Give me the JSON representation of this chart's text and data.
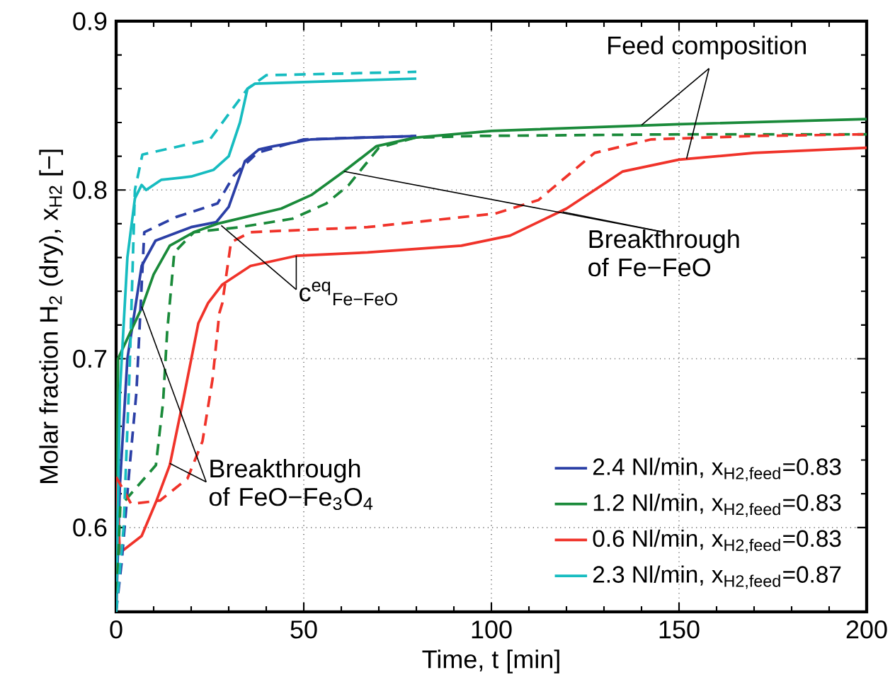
{
  "chart_data": {
    "type": "line",
    "xlabel": "Time, t [min]",
    "ylabel": "Molar fraction H$_{2}$ (dry), x$_{H2}$ [−]",
    "xlim": [
      0,
      200
    ],
    "xticks": [
      0,
      50,
      100,
      150,
      200
    ],
    "ylim": [
      0.55,
      0.9
    ],
    "yticks": [
      {
        "value": 0.6,
        "label": "0.6"
      },
      {
        "value": 0.7,
        "label": "0.7"
      },
      {
        "value": 0.8,
        "label": "0.8"
      },
      {
        "value": 0.9,
        "label": "0.9"
      }
    ],
    "grid": true,
    "legend": "bottom right",
    "marker": "none",
    "series": [
      {
        "name": "2.4 Nl/min, x$_{H2,feed}$=0.83",
        "color": "#2b3fa6",
        "line_style": "solid",
        "x": [
          0,
          1,
          3,
          6.8,
          10.5,
          20,
          26.7,
          30,
          34.3,
          38,
          42,
          52,
          65,
          80
        ],
        "values": [
          0.55,
          0.625,
          0.7,
          0.755,
          0.77,
          0.778,
          0.781,
          0.79,
          0.817,
          0.824,
          0.826,
          0.83,
          0.831,
          0.832
        ]
      },
      {
        "name": "1.2 Nl/min, x$_{H2,feed}$=0.83",
        "color": "#1a8a3a",
        "line_style": "solid",
        "x": [
          0,
          0.5,
          3,
          6.8,
          10,
          14.3,
          20.7,
          27,
          44,
          52,
          60.7,
          69.4,
          79.6,
          100,
          150,
          200
        ],
        "values": [
          0.55,
          0.7,
          0.712,
          0.73,
          0.75,
          0.767,
          0.775,
          0.78,
          0.789,
          0.797,
          0.811,
          0.826,
          0.831,
          0.835,
          0.839,
          0.842
        ]
      },
      {
        "name": "0.6 Nl/min, x$_{H2,feed}$=0.83",
        "color": "#f0332a",
        "line_style": "solid",
        "x": [
          0,
          1,
          6.8,
          10.6,
          14.3,
          18,
          21.9,
          24.5,
          28.3,
          35.8,
          48,
          67,
          92,
          105,
          120,
          135,
          150,
          170,
          200
        ],
        "values": [
          0.63,
          0.585,
          0.595,
          0.615,
          0.637,
          0.677,
          0.721,
          0.733,
          0.744,
          0.755,
          0.761,
          0.763,
          0.767,
          0.773,
          0.789,
          0.811,
          0.818,
          0.822,
          0.825
        ]
      },
      {
        "name": "2.3 Nl/min, x$_{H2,feed}$=0.87",
        "color": "#17bcc0",
        "line_style": "solid",
        "x": [
          0,
          1,
          3,
          5,
          6.8,
          8,
          12,
          20,
          26,
          30,
          33,
          35,
          37,
          50,
          80
        ],
        "values": [
          0.55,
          0.68,
          0.76,
          0.795,
          0.803,
          0.8,
          0.806,
          0.808,
          0.812,
          0.82,
          0.84,
          0.86,
          0.863,
          0.864,
          0.866
        ]
      },
      {
        "color": "#2b3fa6",
        "line_style": "dashed",
        "x": [
          0,
          1.5,
          3.6,
          5.4,
          7.5,
          16,
          27,
          31.5,
          37.6,
          50,
          80
        ],
        "values": [
          0.55,
          0.58,
          0.636,
          0.68,
          0.775,
          0.784,
          0.792,
          0.809,
          0.822,
          0.83,
          0.832
        ]
      },
      {
        "color": "#1a8a3a",
        "line_style": "dashed",
        "x": [
          0,
          1.1,
          2,
          10.6,
          12.5,
          13.6,
          14.3,
          15.5,
          20.7,
          33,
          47,
          56,
          62,
          70,
          79.6,
          95,
          150,
          200
        ],
        "values": [
          0.55,
          0.612,
          0.615,
          0.637,
          0.674,
          0.716,
          0.733,
          0.763,
          0.775,
          0.778,
          0.783,
          0.792,
          0.803,
          0.825,
          0.831,
          0.832,
          0.833,
          0.833
        ]
      },
      {
        "color": "#f0332a",
        "line_style": "dashed",
        "x": [
          0,
          4,
          11.7,
          19,
          23,
          25.7,
          27.5,
          28.3,
          30.6,
          35.8,
          67,
          101,
          112.5,
          120,
          127.5,
          142.6,
          170,
          200
        ],
        "values": [
          0.63,
          0.614,
          0.616,
          0.629,
          0.651,
          0.688,
          0.727,
          0.733,
          0.769,
          0.775,
          0.778,
          0.786,
          0.794,
          0.808,
          0.822,
          0.83,
          0.832,
          0.833
        ]
      },
      {
        "color": "#17bcc0",
        "line_style": "dashed",
        "x": [
          0,
          2,
          3.6,
          5,
          7,
          15,
          25,
          30,
          35,
          40,
          80
        ],
        "values": [
          0.55,
          0.6,
          0.694,
          0.8,
          0.821,
          0.825,
          0.83,
          0.845,
          0.86,
          0.868,
          0.87
        ]
      }
    ],
    "annotations": [
      {
        "text": "Feed composition",
        "x": 140,
        "y": 0.8385
      },
      {
        "text": "Breakthrough of Fe−FeO",
        "x": 60.7,
        "y": 0.811
      },
      {
        "text": "c$^{eq}$$_{Fe−FeO}$",
        "x": 28,
        "y": 0.779
      },
      {
        "text": "Breakthrough of FeO−Fe$_{3}$O$_{4}$",
        "x": 6.8,
        "y": 0.731
      }
    ]
  }
}
